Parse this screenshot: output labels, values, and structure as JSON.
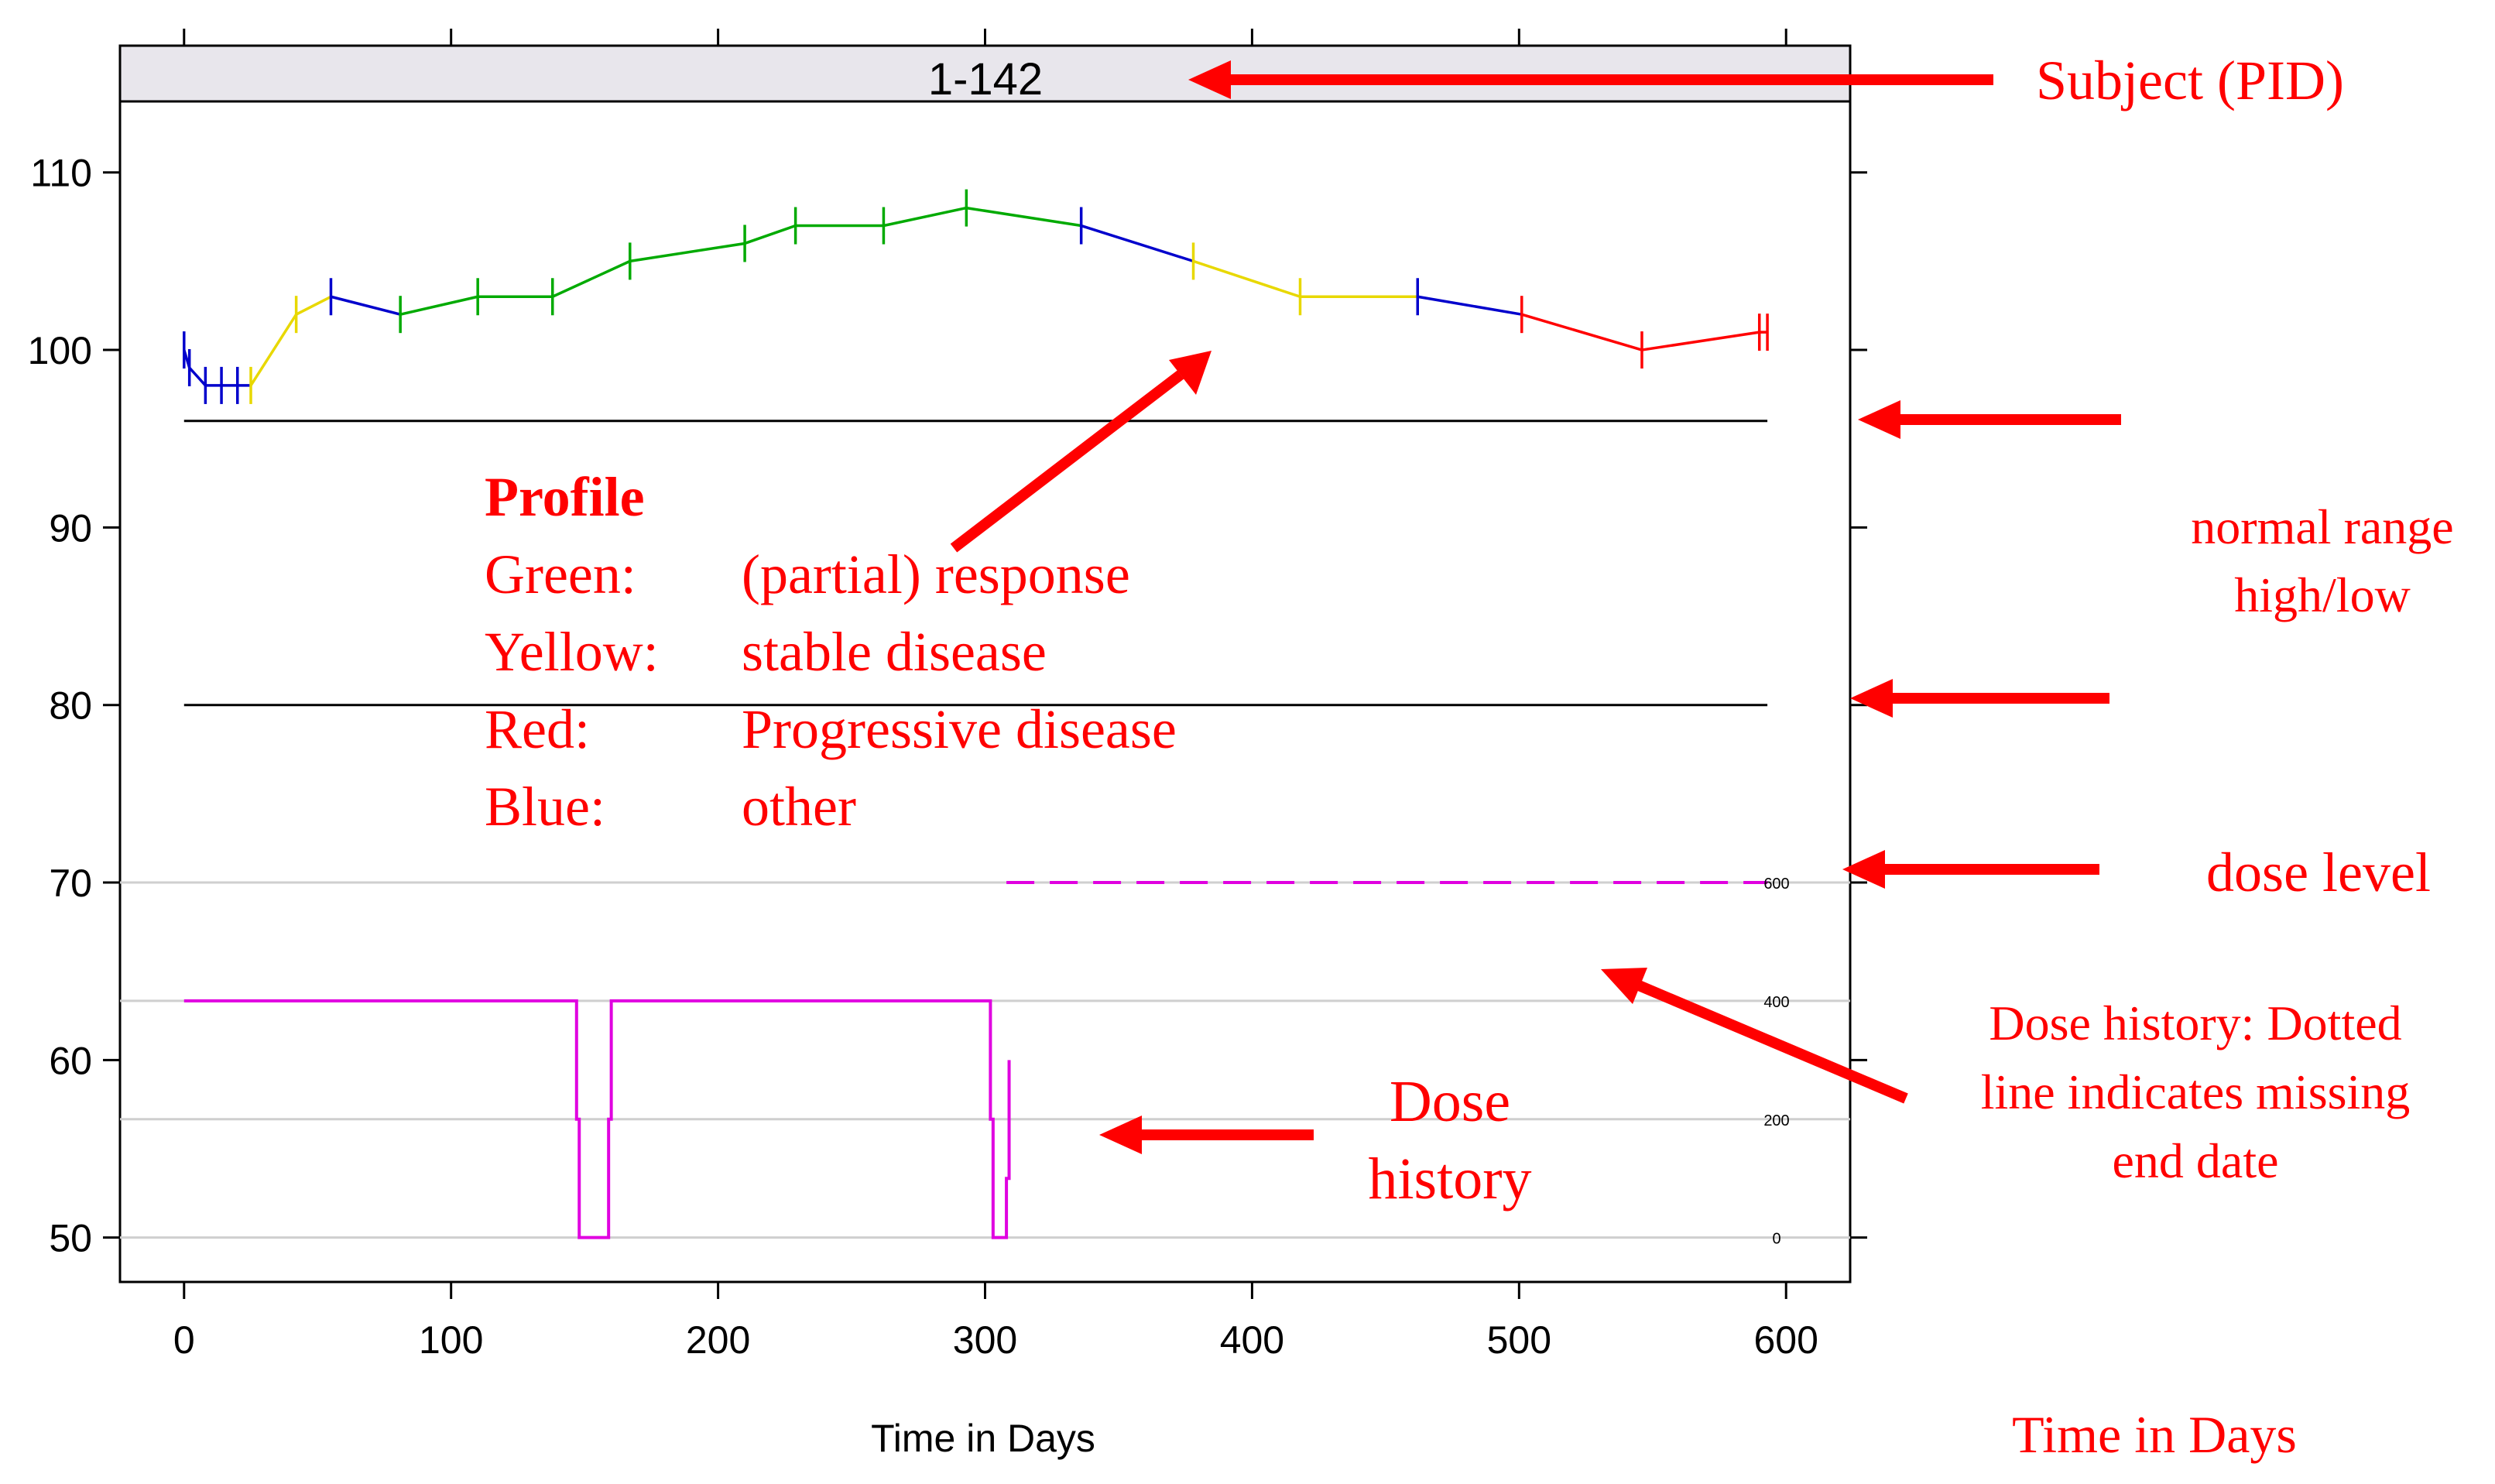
{
  "chart_data": {
    "type": "line",
    "title": "1-142",
    "xlabel": "Time in Days",
    "ylabel": "",
    "xlim": [
      -24,
      624
    ],
    "ylim": [
      47.5,
      114
    ],
    "xticks": [
      0,
      100,
      200,
      300,
      400,
      500,
      600
    ],
    "yticks": [
      50,
      60,
      70,
      80,
      90,
      100,
      110
    ],
    "grid": false,
    "normal_range": {
      "high": 96,
      "low": 80,
      "x": [
        0,
        593
      ]
    },
    "profile": {
      "points": [
        {
          "x": 0,
          "y": 100
        },
        {
          "x": 2,
          "y": 99
        },
        {
          "x": 8,
          "y": 98
        },
        {
          "x": 14,
          "y": 98
        },
        {
          "x": 20,
          "y": 98
        },
        {
          "x": 25,
          "y": 98
        },
        {
          "x": 42,
          "y": 102
        },
        {
          "x": 55,
          "y": 103
        },
        {
          "x": 81,
          "y": 102
        },
        {
          "x": 110,
          "y": 103
        },
        {
          "x": 138,
          "y": 103
        },
        {
          "x": 167,
          "y": 105
        },
        {
          "x": 210,
          "y": 106
        },
        {
          "x": 229,
          "y": 107
        },
        {
          "x": 262,
          "y": 107
        },
        {
          "x": 293,
          "y": 108
        },
        {
          "x": 336,
          "y": 107
        },
        {
          "x": 378,
          "y": 105
        },
        {
          "x": 418,
          "y": 103
        },
        {
          "x": 462,
          "y": 103
        },
        {
          "x": 501,
          "y": 102
        },
        {
          "x": 546,
          "y": 100
        },
        {
          "x": 590,
          "y": 101
        },
        {
          "x": 593,
          "y": 101
        }
      ],
      "segment_colors": [
        "blue",
        "blue",
        "blue",
        "blue",
        "blue",
        "yellow",
        "yellow",
        "blue",
        "green",
        "green",
        "green",
        "green",
        "green",
        "green",
        "green",
        "green",
        "blue",
        "yellow",
        "yellow",
        "blue",
        "red",
        "red",
        "red"
      ],
      "colors": {
        "green": "#00aa00",
        "yellow": "#e8d800",
        "red": "#ff0000",
        "blue": "#0000cc"
      }
    },
    "dose_axis": {
      "ticks": [
        "0",
        "200",
        "400",
        "600"
      ],
      "values": [
        0,
        200,
        400,
        600
      ]
    },
    "dose_history": {
      "color": "#e000e0",
      "solid": [
        [
          0,
          400
        ],
        [
          147,
          400
        ],
        [
          147,
          200
        ],
        [
          148,
          200
        ],
        [
          148,
          0
        ],
        [
          159,
          0
        ],
        [
          159,
          200
        ],
        [
          160,
          200
        ],
        [
          160,
          400
        ],
        [
          302,
          400
        ],
        [
          302,
          200
        ],
        [
          303,
          200
        ],
        [
          303,
          0
        ],
        [
          308,
          0
        ],
        [
          308,
          100
        ],
        [
          309,
          100
        ],
        [
          309,
          300
        ]
      ],
      "dotted": [
        [
          308,
          600
        ],
        [
          593,
          600
        ]
      ]
    }
  },
  "annotations": {
    "subject": "Subject (PID)",
    "profile_heading": "Profile",
    "legend": [
      {
        "label": "Green:",
        "desc": "(partial) response"
      },
      {
        "label": "Yellow:",
        "desc": "stable disease"
      },
      {
        "label": "Red:",
        "desc": "Progressive disease"
      },
      {
        "label": "Blue:",
        "desc": "other"
      }
    ],
    "normal_range_line1": "normal range",
    "normal_range_line2": "high/low",
    "dose_level": "dose level",
    "dose_history_note_line1": "Dose history: Dotted",
    "dose_history_note_line2": "line indicates missing",
    "dose_history_note_line3": "end date",
    "dose_history_line1": "Dose",
    "dose_history_line2": "history",
    "time_in_days": "Time in Days"
  },
  "colors": {
    "annotation": "#ff0000",
    "strip": "#e8e6ec",
    "frame": "#000000"
  }
}
